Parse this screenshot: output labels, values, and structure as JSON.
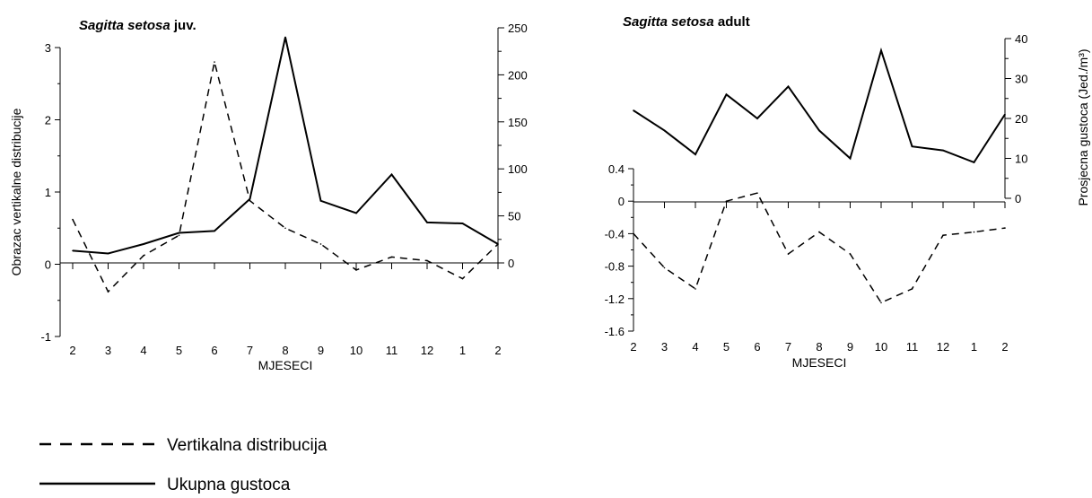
{
  "chart_data": [
    {
      "type": "line",
      "title_italic": "Sagitta setosa",
      "title_rest": " juv.",
      "xlabel": "MJESECI",
      "ylabel_left": "Obrazac vertikalne distribucije",
      "ylabel_right": "",
      "categories": [
        "2",
        "3",
        "4",
        "5",
        "6",
        "7",
        "8",
        "9",
        "10",
        "11",
        "12",
        "1",
        "2"
      ],
      "left_axis": {
        "ylim": [
          -1,
          3
        ],
        "ticks": [
          "-1",
          "0",
          "1",
          "2",
          "3"
        ],
        "tick_values": [
          -1,
          0,
          1,
          2,
          3
        ]
      },
      "right_axis": {
        "ylim": [
          0,
          250
        ],
        "ticks": [
          "0",
          "50",
          "100",
          "150",
          "200",
          "250"
        ],
        "tick_values": [
          0,
          50,
          100,
          150,
          200,
          250
        ]
      },
      "series": [
        {
          "name": "Vertikalna distribucija",
          "axis": "left",
          "style": "dashed",
          "values": [
            0.62,
            -0.38,
            0.12,
            0.4,
            2.8,
            0.88,
            0.5,
            0.28,
            -0.08,
            0.1,
            0.05,
            -0.2,
            0.28
          ]
        },
        {
          "name": "Ukupna gustoca",
          "axis": "right",
          "style": "solid",
          "values": [
            13,
            10,
            20,
            32,
            34,
            68,
            240,
            66,
            53,
            94,
            43,
            42,
            20
          ]
        }
      ]
    },
    {
      "type": "line",
      "title_italic": "Sagitta setosa",
      "title_rest": " adult",
      "xlabel": "MJESECI",
      "ylabel_left": "",
      "ylabel_right": "Prosjecna gustoca (Jed./m³)",
      "categories": [
        "2",
        "3",
        "4",
        "5",
        "6",
        "7",
        "8",
        "9",
        "10",
        "11",
        "12",
        "1",
        "2"
      ],
      "left_axis": {
        "ylim": [
          -1.6,
          0.4
        ],
        "ticks": [
          "-1.6",
          "-1.2",
          "-0.8",
          "-0.4",
          "0",
          "0.4"
        ],
        "tick_values": [
          -1.6,
          -1.2,
          -0.8,
          -0.4,
          0,
          0.4
        ]
      },
      "right_axis": {
        "ylim": [
          0,
          40
        ],
        "ticks": [
          "0",
          "10",
          "20",
          "30",
          "40"
        ],
        "tick_values": [
          0,
          10,
          20,
          30,
          40
        ]
      },
      "series": [
        {
          "name": "Vertikalna distribucija",
          "axis": "left",
          "style": "dashed",
          "values": [
            -0.4,
            -0.82,
            -1.08,
            0.0,
            0.1,
            -0.65,
            -0.38,
            -0.65,
            -1.25,
            -1.08,
            -0.42,
            -0.38,
            -0.33
          ]
        },
        {
          "name": "Ukupna gustoca",
          "axis": "right",
          "style": "solid",
          "values": [
            22,
            17,
            11,
            26,
            20,
            28,
            17,
            10,
            37,
            13,
            12,
            9,
            21
          ]
        }
      ]
    }
  ],
  "legend": [
    {
      "label": "Vertikalna distribucija",
      "style": "dashed"
    },
    {
      "label": "Ukupna gustoca",
      "style": "solid"
    }
  ]
}
